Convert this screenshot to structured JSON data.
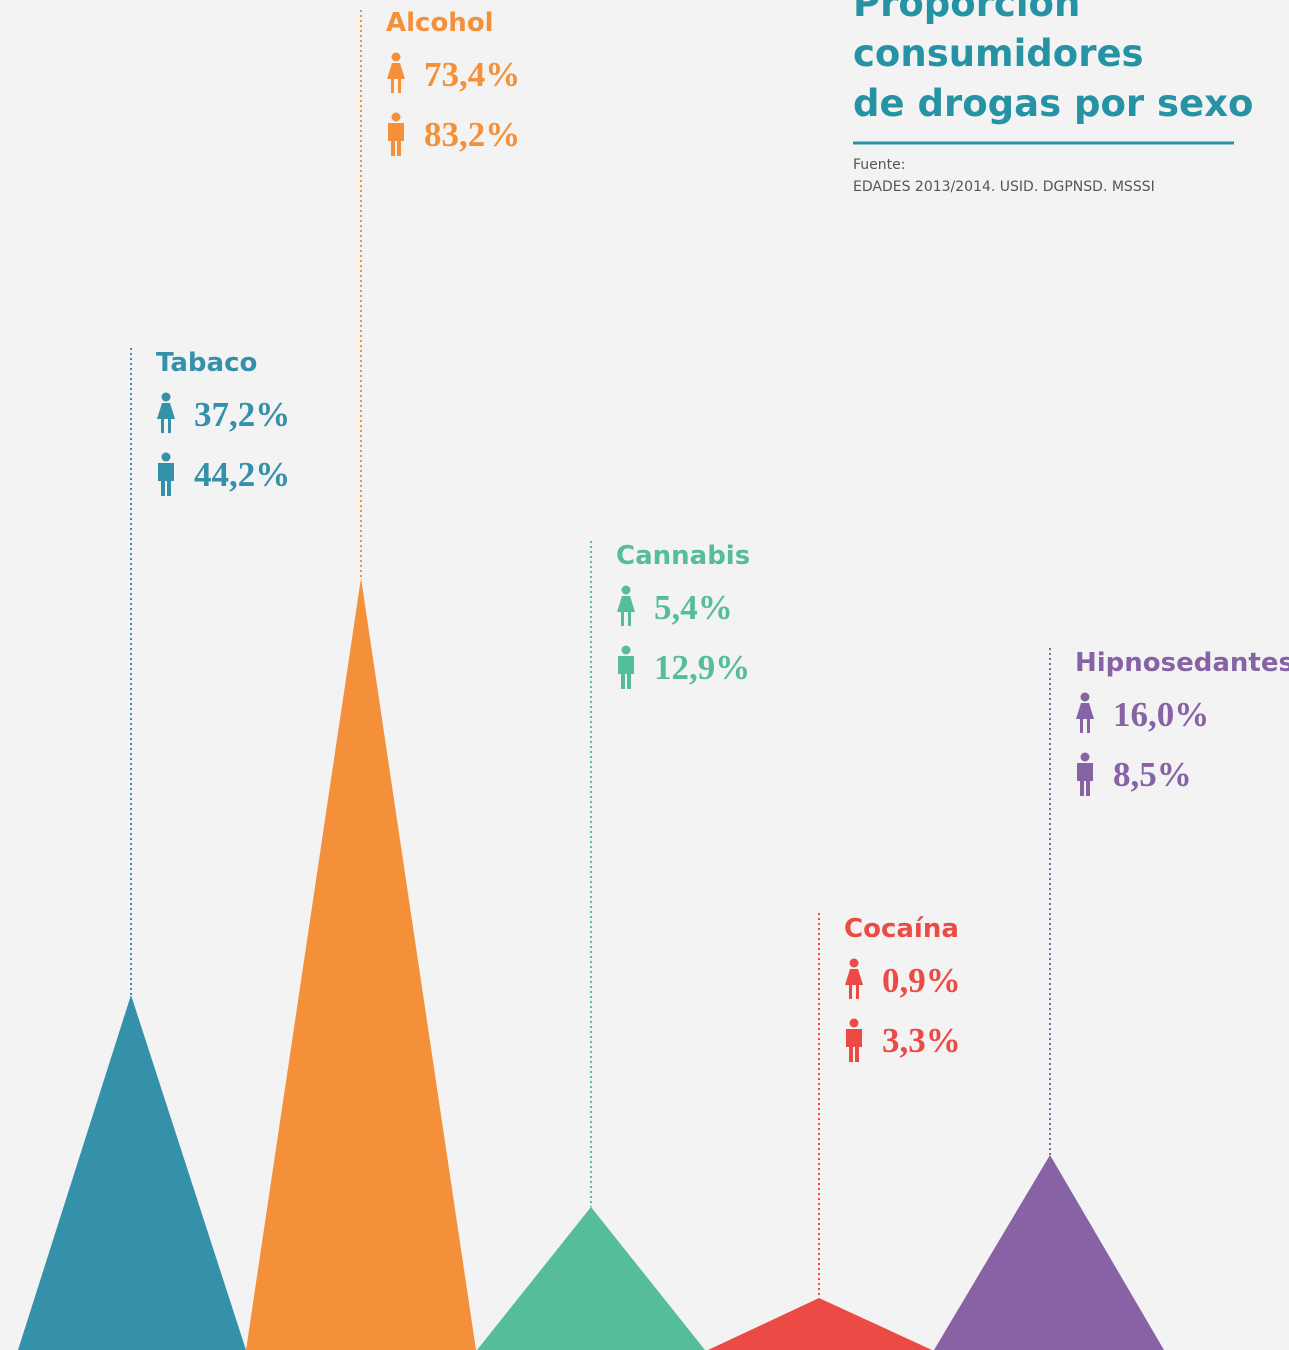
{
  "chart_data": {
    "type": "triangle",
    "title": [
      "Proporción",
      "consumidores",
      "de drogas por sexo"
    ],
    "source": [
      "Fuente:",
      "EDADES 2013/2014. USID. DGPNSD. MSSSI"
    ],
    "items": [
      {
        "label": "Tabaco",
        "color": "#3590a9",
        "female": 37.2,
        "female_label": "37,2%",
        "male": 44.2,
        "male_label": "44,2%"
      },
      {
        "label": "Alcohol",
        "color": "#f4903a",
        "female": 73.4,
        "female_label": "73,4%",
        "male": 83.2,
        "male_label": "83,2%"
      },
      {
        "label": "Cannabis",
        "color": "#55bc9c",
        "female": 5.4,
        "female_label": "5,4%",
        "male": 12.9,
        "male_label": "12,9%"
      },
      {
        "label": "Cocaína",
        "color": "#ec4a45",
        "female": 0.9,
        "female_label": "0,9%",
        "male": 3.3,
        "male_label": "3,3%"
      },
      {
        "label": "Hipnosedantes",
        "color": "#8763a6",
        "female": 16.0,
        "female_label": "16,0%",
        "male": 8.5,
        "male_label": "8,5%"
      }
    ]
  }
}
